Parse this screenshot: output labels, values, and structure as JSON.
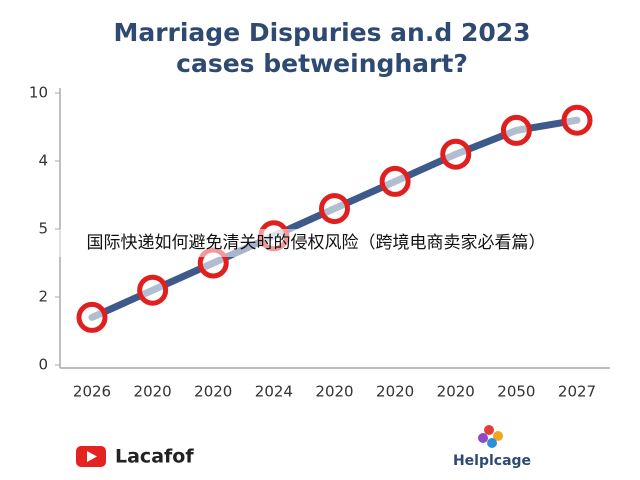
{
  "chart_data": {
    "type": "line",
    "title": [
      "Marriage Dispuries an.d 2023",
      "cases betweinghart?"
    ],
    "categories": [
      "2026",
      "2020",
      "2020",
      "2024",
      "2020",
      "2020",
      "2020",
      "2050",
      "2027"
    ],
    "series": [
      {
        "color": "#3d5a8a",
        "marker_color": "#e0201f",
        "values": [
          0.7,
          1.1,
          1.5,
          1.9,
          2.3,
          2.7,
          3.1,
          3.45,
          3.6
        ]
      }
    ],
    "ylim": [
      0,
      4
    ],
    "yticks": [
      0,
      {
        "value": 1,
        "label": "2"
      },
      {
        "value": 2,
        "label": "5"
      },
      {
        "value": 3,
        "label": "4"
      },
      {
        "value": 4,
        "label": "10"
      }
    ],
    "grid": false
  },
  "overlay_text": "国际快递如何避免清关时的侵权风险（跨境电商卖家必看篇）",
  "footer": {
    "left_brand": "Lacafof",
    "right_brand": "Helplcage"
  }
}
